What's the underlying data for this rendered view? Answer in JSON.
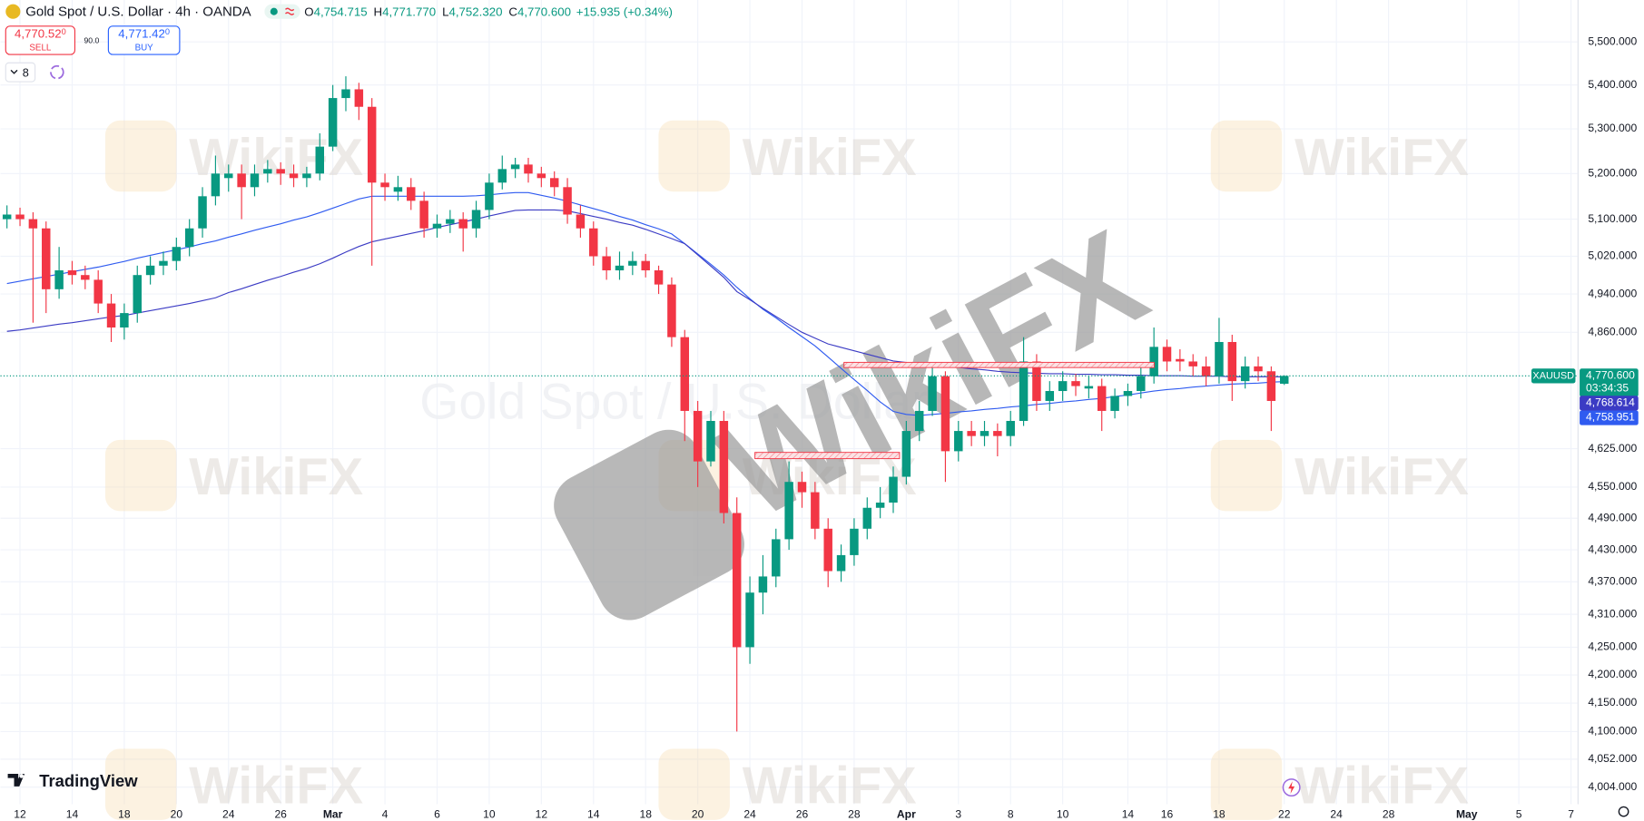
{
  "header": {
    "symbol": "Gold Spot / U.S. Dollar · 4h · OANDA",
    "ohlc": [
      {
        "key": "O",
        "value": "4,754.715"
      },
      {
        "key": "H",
        "value": "4,771.770"
      },
      {
        "key": "L",
        "value": "4,752.320"
      },
      {
        "key": "C",
        "value": "4,770.600"
      }
    ],
    "change": "+15.935 (+0.34%)",
    "sell": {
      "price": "4,770.52",
      "fraction": "0",
      "label": "SELL"
    },
    "spread": "90.0",
    "buy": {
      "price": "4,771.42",
      "fraction": "0",
      "label": "BUY"
    },
    "indicators": "8"
  },
  "watermark": "WikiFX",
  "brand": "TradingView",
  "chart_data": {
    "type": "candlestick",
    "log_scale": true,
    "grid": true,
    "watermark_symbol": "Gold Spot / U.S. Dollar",
    "up_color": "#089981",
    "down_color": "#f23645",
    "categories": [
      null,
      "12",
      null,
      null,
      null,
      "14",
      null,
      null,
      null,
      "18",
      null,
      null,
      null,
      "20",
      null,
      null,
      null,
      "24",
      null,
      null,
      null,
      "26",
      null,
      null,
      null,
      "Mar",
      null,
      null,
      null,
      "4",
      null,
      null,
      null,
      "6",
      null,
      null,
      null,
      "10",
      null,
      null,
      null,
      "12",
      null,
      null,
      null,
      "14",
      null,
      null,
      null,
      "18",
      null,
      null,
      null,
      "20",
      null,
      null,
      null,
      "24",
      null,
      null,
      null,
      "26",
      null,
      null,
      null,
      "28",
      null,
      null,
      null,
      "Apr",
      null,
      null,
      null,
      "3",
      null,
      null,
      null,
      "8",
      null,
      null,
      null,
      "10",
      null,
      null,
      null,
      null,
      "14",
      null,
      null,
      "16",
      null,
      null,
      null,
      "18",
      null,
      null,
      null,
      null,
      "22",
      null,
      null,
      null,
      "24",
      null,
      null,
      null,
      "28",
      null,
      null,
      null,
      null,
      null,
      "May",
      null,
      null,
      null,
      "5",
      null,
      null,
      null,
      "7"
    ],
    "open": [
      5100,
      5110,
      5100,
      5080,
      4950,
      4990,
      4980,
      4970,
      4920,
      4870,
      4900,
      4980,
      5000,
      5010,
      5040,
      5080,
      5150,
      5190,
      5200,
      5170,
      5200,
      5210,
      5200,
      5190,
      5200,
      5260,
      5370,
      5390,
      5350,
      5180,
      5160,
      5170,
      5140,
      5080,
      5090,
      5100,
      5080,
      5120,
      5180,
      5210,
      5220,
      5200,
      5190,
      5170,
      5110,
      5080,
      5020,
      4990,
      5000,
      5010,
      4990,
      4960,
      4850,
      4700,
      4600,
      4680,
      4500,
      4250,
      4350,
      4380,
      4450,
      4560,
      4540,
      4470,
      4390,
      4420,
      4470,
      4510,
      4520,
      4570,
      4660,
      4700,
      4770,
      4620,
      4660,
      4650,
      4660,
      4650,
      4680,
      4800,
      4720,
      4740,
      4760,
      4745,
      4750,
      4700,
      4730,
      4740,
      4770,
      4830,
      4805,
      4800,
      4790,
      4770,
      4840,
      4760,
      4790,
      4780,
      4754.715,
      null,
      null,
      null,
      null,
      null,
      null,
      null,
      null,
      null,
      null,
      null,
      null,
      null,
      null,
      null,
      null,
      null,
      null,
      null,
      null,
      null,
      null
    ],
    "high": [
      5130,
      5125,
      5115,
      5095,
      5040,
      5010,
      5000,
      4990,
      4940,
      4920,
      5000,
      5020,
      5030,
      5060,
      5100,
      5170,
      5240,
      5220,
      5220,
      5220,
      5230,
      5225,
      5220,
      5215,
      5290,
      5400,
      5420,
      5405,
      5370,
      5200,
      5195,
      5190,
      5160,
      5110,
      5120,
      5115,
      5140,
      5200,
      5240,
      5235,
      5235,
      5215,
      5205,
      5190,
      5130,
      5095,
      5040,
      5030,
      5030,
      5025,
      5000,
      4975,
      4865,
      4720,
      4700,
      4700,
      4530,
      4380,
      4420,
      4470,
      4600,
      4580,
      4560,
      4490,
      4440,
      4490,
      4530,
      4550,
      4590,
      4680,
      4720,
      4790,
      4780,
      4680,
      4680,
      4680,
      4675,
      4700,
      4850,
      4815,
      4760,
      4780,
      4775,
      4770,
      4765,
      4745,
      4755,
      4790,
      4870,
      4845,
      4825,
      4815,
      4810,
      4890,
      4855,
      4810,
      4810,
      4790,
      4771.77,
      null,
      null,
      null,
      null,
      null,
      null,
      null,
      null,
      null,
      null,
      null,
      null,
      null,
      null,
      null,
      null,
      null,
      null,
      null,
      null,
      null,
      null
    ],
    "low": [
      5080,
      5085,
      4880,
      4900,
      4930,
      4960,
      4950,
      4900,
      4840,
      4845,
      4880,
      4960,
      4980,
      4990,
      5020,
      5060,
      5130,
      5160,
      5100,
      5150,
      5180,
      5175,
      5170,
      5170,
      5185,
      5250,
      5340,
      5320,
      5000,
      5140,
      5140,
      5120,
      5060,
      5060,
      5070,
      5030,
      5060,
      5100,
      5165,
      5190,
      5180,
      5170,
      5150,
      5090,
      5060,
      5000,
      4970,
      4970,
      4980,
      4975,
      4940,
      4830,
      4640,
      4550,
      4590,
      4480,
      4100,
      4220,
      4310,
      4360,
      4430,
      4510,
      4450,
      4360,
      4370,
      4400,
      4450,
      4490,
      4500,
      4555,
      4640,
      4690,
      4560,
      4600,
      4630,
      4630,
      4610,
      4630,
      4670,
      4700,
      4700,
      4720,
      4730,
      4725,
      4660,
      4685,
      4710,
      4725,
      4755,
      4780,
      4780,
      4770,
      4750,
      4755,
      4720,
      4745,
      4760,
      4660,
      4752.32,
      null,
      null,
      null,
      null,
      null,
      null,
      null,
      null,
      null,
      null,
      null,
      null,
      null,
      null,
      null,
      null,
      null,
      null,
      null,
      null,
      null,
      null
    ],
    "close": [
      5110,
      5100,
      5080,
      4950,
      4990,
      4980,
      4970,
      4920,
      4870,
      4900,
      4980,
      5000,
      5010,
      5040,
      5080,
      5150,
      5200,
      5200,
      5170,
      5200,
      5210,
      5200,
      5190,
      5200,
      5260,
      5370,
      5390,
      5350,
      5180,
      5170,
      5170,
      5140,
      5080,
      5090,
      5100,
      5080,
      5120,
      5180,
      5210,
      5220,
      5200,
      5190,
      5170,
      5110,
      5080,
      5020,
      4990,
      5000,
      5010,
      4990,
      4960,
      4850,
      4700,
      4600,
      4680,
      4500,
      4250,
      4350,
      4380,
      4450,
      4560,
      4540,
      4470,
      4390,
      4420,
      4470,
      4510,
      4520,
      4570,
      4660,
      4700,
      4770,
      4620,
      4660,
      4650,
      4660,
      4650,
      4680,
      4800,
      4720,
      4740,
      4760,
      4750,
      4750,
      4700,
      4730,
      4740,
      4770,
      4830,
      4800,
      4800,
      4790,
      4770,
      4840,
      4760,
      4790,
      4780,
      4720,
      4770.6,
      null,
      null,
      null,
      null,
      null,
      null,
      null,
      null,
      null,
      null,
      null,
      null,
      null,
      null,
      null,
      null,
      null,
      null,
      null,
      null,
      null,
      null
    ],
    "series": [
      {
        "type": "line",
        "color": "#2f5bf0",
        "end_label": "4,758.951",
        "values": [
          4962,
          4967,
          4972,
          4977,
          4982,
          4987,
          4992,
          4997,
          5003,
          5009,
          5016,
          5022,
          5028,
          5034,
          5040,
          5047,
          5053,
          5061,
          5068,
          5076,
          5083,
          5090,
          5098,
          5105,
          5114,
          5124,
          5134,
          5144,
          5150,
          5150,
          5150,
          5150,
          5150,
          5150,
          5150,
          5150,
          5151,
          5153,
          5156,
          5158,
          5158,
          5152,
          5146,
          5139,
          5131,
          5123,
          5115,
          5106,
          5098,
          5088,
          5079,
          5068,
          5047,
          5025,
          5003,
          4980,
          4954,
          4930,
          4908,
          4890,
          4870,
          4851,
          4832,
          4809,
          4786,
          4763,
          4741,
          4718,
          4699,
          4693,
          4691,
          4693,
          4695,
          4698,
          4700,
          4703,
          4705,
          4708,
          4710,
          4713,
          4715,
          4718,
          4720,
          4723,
          4725,
          4729,
          4732,
          4736,
          4740,
          4743,
          4745,
          4748,
          4750,
          4752,
          4754,
          4755,
          4756,
          4758,
          4758.951,
          null,
          null,
          null,
          null,
          null,
          null,
          null,
          null,
          null,
          null,
          null,
          null,
          null,
          null,
          null,
          null,
          null,
          null,
          null,
          null,
          null,
          null
        ]
      },
      {
        "type": "line",
        "color": "#3b3bc4",
        "end_label": "4,768.614",
        "values": [
          4862,
          4865,
          4869,
          4873,
          4877,
          4880,
          4884,
          4888,
          4892,
          4895,
          4900,
          4905,
          4910,
          4915,
          4920,
          4926,
          4932,
          4943,
          4951,
          4960,
          4969,
          4977,
          4986,
          4994,
          5004,
          5016,
          5029,
          5041,
          5051,
          5057,
          5063,
          5069,
          5075,
          5082,
          5088,
          5094,
          5100,
          5107,
          5113,
          5119,
          5120,
          5120,
          5120,
          5118,
          5112,
          5106,
          5100,
          5093,
          5087,
          5078,
          5068,
          5058,
          5047,
          5023,
          4999,
          4975,
          4945,
          4928,
          4910,
          4893,
          4876,
          4860,
          4848,
          4836,
          4829,
          4822,
          4815,
          4808,
          4801,
          4798,
          4796,
          4793,
          4790,
          4788,
          4785,
          4783,
          4780,
          4778,
          4777,
          4776,
          4775,
          4775,
          4774,
          4774,
          4773,
          4773,
          4772,
          4772,
          4771,
          4771,
          4771,
          4770,
          4770,
          4770,
          4769,
          4769,
          4769,
          4769,
          4768.614,
          null,
          null,
          null,
          null,
          null,
          null,
          null,
          null,
          null,
          null,
          null,
          null,
          null,
          null,
          null,
          null,
          null,
          null,
          null,
          null,
          null,
          null
        ]
      }
    ],
    "last_price": {
      "symbol": "XAUUSD",
      "label": "4,770.600",
      "countdown": "03:34:35",
      "color": "#089981"
    },
    "ylim": [
      3975,
      5599
    ],
    "yticks": [
      {
        "value": 5500,
        "label": "5,500.000"
      },
      {
        "value": 5400,
        "label": "5,400.000"
      },
      {
        "value": 5300,
        "label": "5,300.000"
      },
      {
        "value": 5200,
        "label": "5,200.000"
      },
      {
        "value": 5100,
        "label": "5,100.000"
      },
      {
        "value": 5020,
        "label": "5,020.000"
      },
      {
        "value": 4940,
        "label": "4,940.000"
      },
      {
        "value": 4860,
        "label": "4,860.000"
      },
      {
        "value": 4625,
        "label": "4,625.000"
      },
      {
        "value": 4550,
        "label": "4,550.000"
      },
      {
        "value": 4490,
        "label": "4,490.000"
      },
      {
        "value": 4430,
        "label": "4,430.000"
      },
      {
        "value": 4370,
        "label": "4,370.000"
      },
      {
        "value": 4310,
        "label": "4,310.000"
      },
      {
        "value": 4250,
        "label": "4,250.000"
      },
      {
        "value": 4200,
        "label": "4,200.000"
      },
      {
        "value": 4150,
        "label": "4,150.000"
      },
      {
        "value": 4100,
        "label": "4,100.000"
      },
      {
        "value": 4052,
        "label": "4,052.000"
      },
      {
        "value": 4004,
        "label": "4,004.000"
      }
    ]
  }
}
